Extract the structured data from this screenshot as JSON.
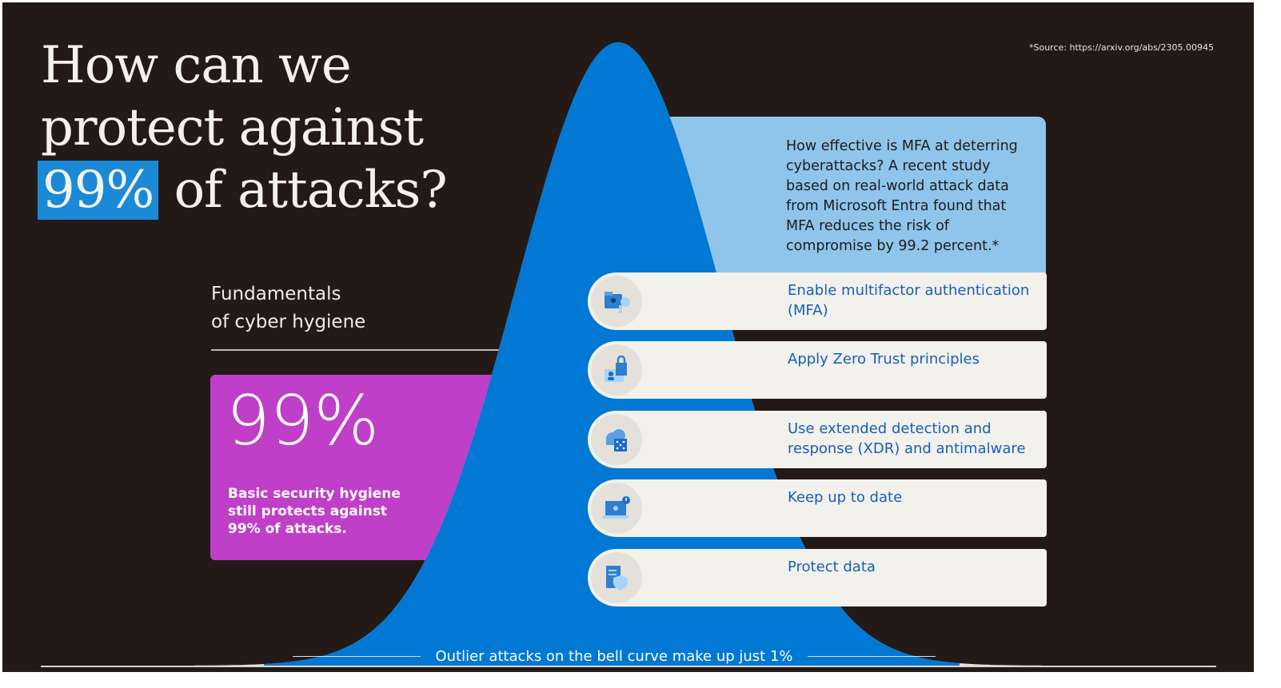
{
  "title": {
    "line1": "How can we",
    "line2": "protect against",
    "highlight": "99%",
    "line3_rest": "of attacks?"
  },
  "source": "*Source: https://arxiv.org/abs/2305.00945",
  "fundamentals": {
    "line1": "Fundamentals",
    "line2": "of cyber hygiene"
  },
  "stat": {
    "value": "99%",
    "text": "Basic security hygiene still protects against 99% of attacks."
  },
  "mfa_note": "How effective is MFA at deterring cyberattacks? A recent study based on real-world attack data from Microsoft Entra found that MFA reduces the risk of compromise by 99.2 percent.*",
  "practices": [
    {
      "icon": "folder-lock-key-icon",
      "label": "Enable multifactor authentication (MFA)"
    },
    {
      "icon": "user-lock-icon",
      "label": "Apply Zero Trust principles"
    },
    {
      "icon": "cloud-grid-icon",
      "label": "Use extended detection and response (XDR) and antimalware"
    },
    {
      "icon": "laptop-alert-icon",
      "label": "Keep up to date"
    },
    {
      "icon": "document-shield-icon",
      "label": "Protect data"
    }
  ],
  "outlier_label": "Outlier attacks on the bell curve make up just 1%",
  "colors": {
    "background": "#231a18",
    "curve": "#0078d4",
    "tails": "#e8e6e0",
    "purple": "#c03fc8",
    "mfa_box": "#8fc5ea",
    "row_text": "#1560b8"
  }
}
